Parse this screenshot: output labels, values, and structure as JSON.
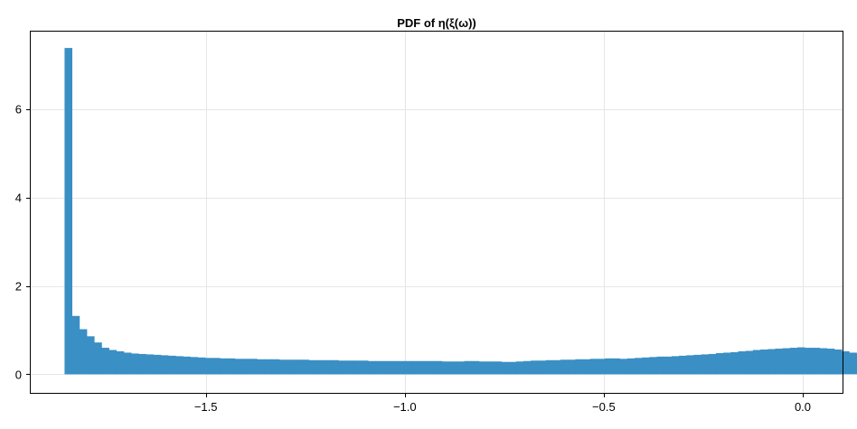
{
  "chart_data": {
    "type": "bar",
    "title": "PDF of η(ξ(ω))",
    "xlabel": "",
    "ylabel": "",
    "xlim": [
      -1.94,
      0.1
    ],
    "ylim": [
      -0.42,
      7.75
    ],
    "xticks": [
      -1.5,
      -1.0,
      -0.5,
      0.0
    ],
    "xtick_labels": [
      "−1.5",
      "−1.0",
      "−0.5",
      "0.0"
    ],
    "yticks": [
      0,
      2,
      4,
      6
    ],
    "ytick_labels": [
      "0",
      "2",
      "4",
      "6"
    ],
    "grid": true,
    "bar_color": "#3a8fc4",
    "bin_start": -1.855,
    "bin_width": 0.0186,
    "values": [
      7.38,
      1.32,
      1.02,
      0.86,
      0.72,
      0.6,
      0.55,
      0.52,
      0.49,
      0.47,
      0.46,
      0.45,
      0.44,
      0.43,
      0.42,
      0.41,
      0.4,
      0.39,
      0.38,
      0.37,
      0.37,
      0.36,
      0.36,
      0.35,
      0.35,
      0.35,
      0.34,
      0.34,
      0.34,
      0.33,
      0.33,
      0.33,
      0.33,
      0.32,
      0.32,
      0.32,
      0.32,
      0.31,
      0.31,
      0.31,
      0.31,
      0.3,
      0.3,
      0.3,
      0.3,
      0.3,
      0.3,
      0.3,
      0.3,
      0.3,
      0.3,
      0.29,
      0.29,
      0.29,
      0.3,
      0.3,
      0.29,
      0.29,
      0.29,
      0.28,
      0.28,
      0.29,
      0.3,
      0.31,
      0.31,
      0.32,
      0.32,
      0.33,
      0.33,
      0.34,
      0.34,
      0.35,
      0.35,
      0.36,
      0.36,
      0.35,
      0.36,
      0.37,
      0.38,
      0.39,
      0.4,
      0.4,
      0.41,
      0.42,
      0.43,
      0.44,
      0.45,
      0.46,
      0.48,
      0.49,
      0.5,
      0.52,
      0.53,
      0.55,
      0.56,
      0.57,
      0.58,
      0.59,
      0.6,
      0.61,
      0.6,
      0.6,
      0.59,
      0.58,
      0.56,
      0.52,
      0.49,
      0.46
    ]
  }
}
